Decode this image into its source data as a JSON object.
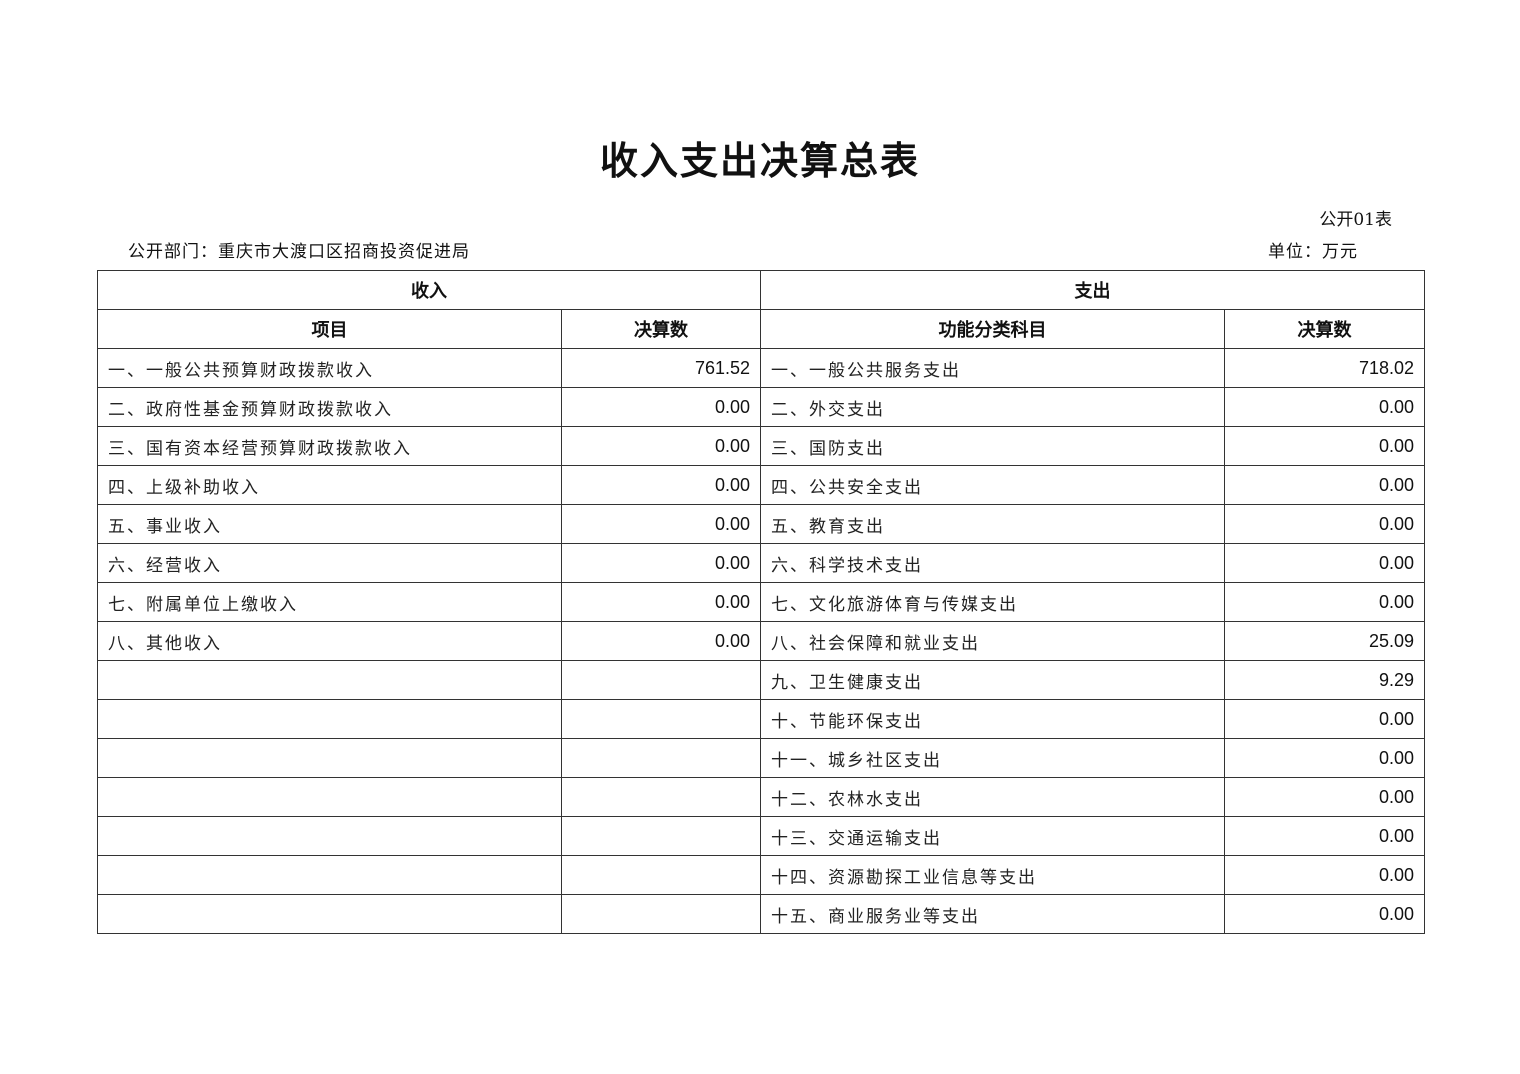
{
  "title": "收入支出决算总表",
  "table_no": "公开01表",
  "department": "公开部门：重庆市大渡口区招商投资促进局",
  "unit": "单位：万元",
  "headers": {
    "income": "收入",
    "expense": "支出",
    "income_item": "项目",
    "income_amount": "决算数",
    "expense_item": "功能分类科目",
    "expense_amount": "决算数"
  },
  "rows": [
    {
      "income_item": "一、一般公共预算财政拨款收入",
      "income_amount": "761.52",
      "expense_item": "一、一般公共服务支出",
      "expense_amount": "718.02"
    },
    {
      "income_item": "二、政府性基金预算财政拨款收入",
      "income_amount": "0.00",
      "expense_item": "二、外交支出",
      "expense_amount": "0.00"
    },
    {
      "income_item": "三、国有资本经营预算财政拨款收入",
      "income_amount": "0.00",
      "expense_item": "三、国防支出",
      "expense_amount": "0.00"
    },
    {
      "income_item": "四、上级补助收入",
      "income_amount": "0.00",
      "expense_item": "四、公共安全支出",
      "expense_amount": "0.00"
    },
    {
      "income_item": "五、事业收入",
      "income_amount": "0.00",
      "expense_item": "五、教育支出",
      "expense_amount": "0.00"
    },
    {
      "income_item": "六、经营收入",
      "income_amount": "0.00",
      "expense_item": "六、科学技术支出",
      "expense_amount": "0.00"
    },
    {
      "income_item": "七、附属单位上缴收入",
      "income_amount": "0.00",
      "expense_item": "七、文化旅游体育与传媒支出",
      "expense_amount": "0.00"
    },
    {
      "income_item": "八、其他收入",
      "income_amount": "0.00",
      "expense_item": "八、社会保障和就业支出",
      "expense_amount": "25.09"
    },
    {
      "income_item": "",
      "income_amount": "",
      "expense_item": "九、卫生健康支出",
      "expense_amount": "9.29"
    },
    {
      "income_item": "",
      "income_amount": "",
      "expense_item": "十、节能环保支出",
      "expense_amount": "0.00"
    },
    {
      "income_item": "",
      "income_amount": "",
      "expense_item": "十一、城乡社区支出",
      "expense_amount": "0.00"
    },
    {
      "income_item": "",
      "income_amount": "",
      "expense_item": "十二、农林水支出",
      "expense_amount": "0.00"
    },
    {
      "income_item": "",
      "income_amount": "",
      "expense_item": "十三、交通运输支出",
      "expense_amount": "0.00"
    },
    {
      "income_item": "",
      "income_amount": "",
      "expense_item": "十四、资源勘探工业信息等支出",
      "expense_amount": "0.00"
    },
    {
      "income_item": "",
      "income_amount": "",
      "expense_item": "十五、商业服务业等支出",
      "expense_amount": "0.00"
    }
  ]
}
